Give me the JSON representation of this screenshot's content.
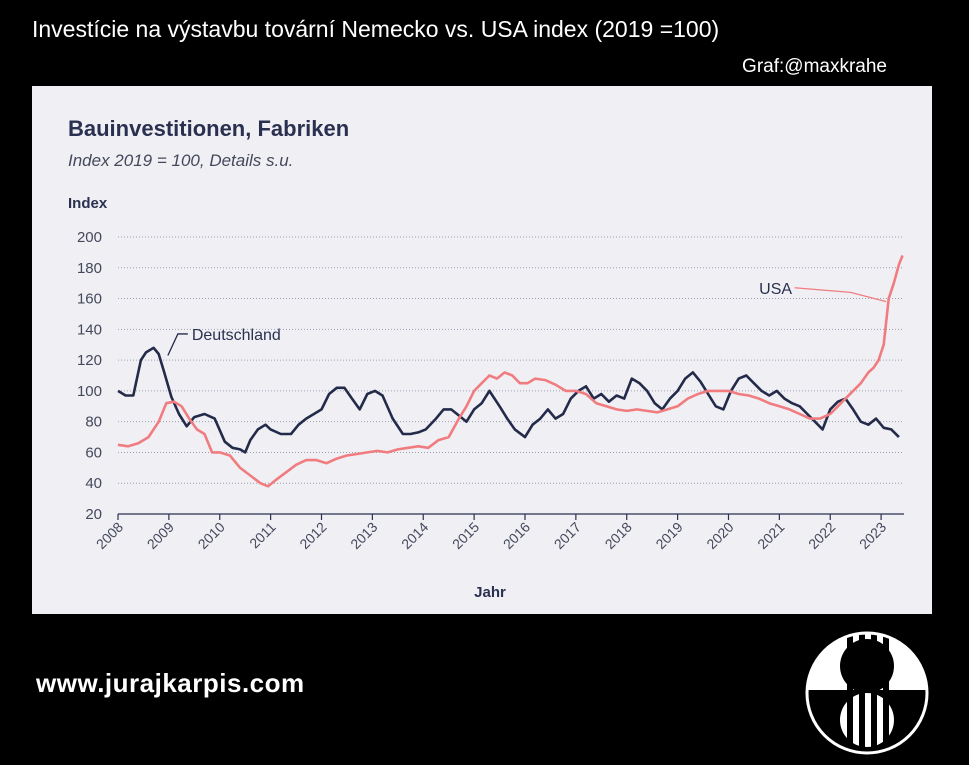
{
  "header": {
    "title": "Investície na výstavbu tovární Nemecko vs. USA index (2019 =100)",
    "credit": "Graf:@maxkrahe"
  },
  "footer": {
    "website": "www.jurajkarpis.com"
  },
  "logo": {
    "icon": "dollar-sign-circle-logo",
    "color": "#ffffff"
  },
  "chart_data": {
    "type": "line",
    "title": "Bauinvestitionen, Fabriken",
    "subtitle": "Index 2019 = 100, Details s.u.",
    "ylabel": "Index",
    "xlabel": "Jahr",
    "ylim": [
      20,
      200
    ],
    "yticks": [
      200,
      180,
      160,
      140,
      120,
      100,
      80,
      60,
      40,
      20
    ],
    "xlim": [
      2008,
      2023.45
    ],
    "xticks": [
      "2008",
      "2009",
      "2010",
      "2011",
      "2012",
      "2013",
      "2014",
      "2015",
      "2016",
      "2017",
      "2018",
      "2019",
      "2020",
      "2021",
      "2022",
      "2023"
    ],
    "grid": true,
    "series": [
      {
        "name": "Deutschland",
        "color": "#232a4a",
        "x": [
          2008.0,
          2008.15,
          2008.3,
          2008.45,
          2008.55,
          2008.7,
          2008.8,
          2008.9,
          2009.05,
          2009.2,
          2009.35,
          2009.5,
          2009.7,
          2009.9,
          2010.1,
          2010.25,
          2010.4,
          2010.5,
          2010.6,
          2010.75,
          2010.9,
          2011.0,
          2011.2,
          2011.4,
          2011.55,
          2011.7,
          2011.85,
          2012.0,
          2012.15,
          2012.3,
          2012.45,
          2012.6,
          2012.75,
          2012.9,
          2013.05,
          2013.2,
          2013.4,
          2013.6,
          2013.75,
          2013.9,
          2014.05,
          2014.25,
          2014.4,
          2014.55,
          2014.7,
          2014.85,
          2015.0,
          2015.15,
          2015.3,
          2015.5,
          2015.65,
          2015.8,
          2016.0,
          2016.15,
          2016.3,
          2016.45,
          2016.6,
          2016.75,
          2016.9,
          2017.05,
          2017.2,
          2017.35,
          2017.5,
          2017.65,
          2017.8,
          2017.95,
          2018.1,
          2018.25,
          2018.4,
          2018.55,
          2018.7,
          2018.85,
          2019.0,
          2019.15,
          2019.3,
          2019.45,
          2019.6,
          2019.75,
          2019.9,
          2020.05,
          2020.2,
          2020.35,
          2020.5,
          2020.65,
          2020.8,
          2020.95,
          2021.1,
          2021.25,
          2021.4,
          2021.55,
          2021.7,
          2021.85,
          2022.0,
          2022.15,
          2022.3,
          2022.45,
          2022.6,
          2022.75,
          2022.9,
          2023.05,
          2023.2,
          2023.35
        ],
        "y": [
          100,
          97,
          97,
          120,
          125,
          128,
          124,
          113,
          96,
          85,
          77,
          83,
          85,
          82,
          67,
          63,
          62,
          60,
          68,
          75,
          78,
          75,
          72,
          72,
          78,
          82,
          85,
          88,
          98,
          102,
          102,
          95,
          88,
          98,
          100,
          97,
          82,
          72,
          72,
          73,
          75,
          82,
          88,
          88,
          84,
          80,
          88,
          92,
          100,
          90,
          82,
          75,
          70,
          78,
          82,
          88,
          82,
          85,
          95,
          100,
          103,
          95,
          98,
          93,
          97,
          95,
          108,
          105,
          100,
          92,
          88,
          95,
          100,
          108,
          112,
          106,
          98,
          90,
          88,
          100,
          108,
          110,
          105,
          100,
          97,
          100,
          95,
          92,
          90,
          85,
          80,
          75,
          88,
          93,
          95,
          88,
          80,
          78,
          82,
          76,
          75,
          70
        ]
      },
      {
        "name": "USA",
        "color": "#f07c80",
        "x": [
          2008.0,
          2008.2,
          2008.4,
          2008.6,
          2008.8,
          2008.95,
          2009.1,
          2009.25,
          2009.4,
          2009.55,
          2009.7,
          2009.85,
          2010.0,
          2010.2,
          2010.4,
          2010.6,
          2010.8,
          2010.95,
          2011.1,
          2011.3,
          2011.5,
          2011.7,
          2011.9,
          2012.1,
          2012.3,
          2012.5,
          2012.7,
          2012.9,
          2013.1,
          2013.3,
          2013.5,
          2013.7,
          2013.9,
          2014.1,
          2014.3,
          2014.5,
          2014.7,
          2014.85,
          2015.0,
          2015.15,
          2015.3,
          2015.45,
          2015.6,
          2015.75,
          2015.9,
          2016.05,
          2016.2,
          2016.4,
          2016.6,
          2016.8,
          2017.0,
          2017.2,
          2017.4,
          2017.6,
          2017.8,
          2018.0,
          2018.2,
          2018.4,
          2018.6,
          2018.8,
          2019.0,
          2019.2,
          2019.4,
          2019.6,
          2019.8,
          2020.0,
          2020.2,
          2020.4,
          2020.6,
          2020.8,
          2021.0,
          2021.2,
          2021.4,
          2021.6,
          2021.8,
          2022.0,
          2022.15,
          2022.3,
          2022.45,
          2022.6,
          2022.75,
          2022.85,
          2022.95,
          2023.05,
          2023.15,
          2023.25,
          2023.35,
          2023.42
        ],
        "y": [
          65,
          64,
          66,
          70,
          80,
          92,
          93,
          90,
          82,
          75,
          72,
          60,
          60,
          58,
          50,
          45,
          40,
          38,
          42,
          47,
          52,
          55,
          55,
          53,
          56,
          58,
          59,
          60,
          61,
          60,
          62,
          63,
          64,
          63,
          68,
          70,
          82,
          90,
          100,
          105,
          110,
          108,
          112,
          110,
          105,
          105,
          108,
          107,
          104,
          100,
          100,
          98,
          92,
          90,
          88,
          87,
          88,
          87,
          86,
          88,
          90,
          95,
          98,
          100,
          100,
          100,
          98,
          97,
          95,
          92,
          90,
          88,
          85,
          82,
          82,
          85,
          90,
          95,
          100,
          105,
          112,
          115,
          120,
          130,
          160,
          170,
          182,
          188
        ]
      }
    ]
  }
}
